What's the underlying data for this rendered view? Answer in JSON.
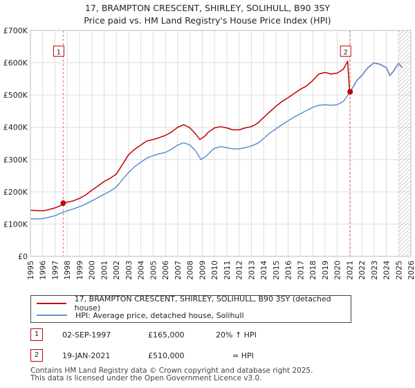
{
  "chart_data": {
    "type": "line",
    "title": "17, BRAMPTON CRESCENT, SHIRLEY, SOLIHULL, B90 3SY",
    "subtitle": "Price paid vs. HM Land Registry's House Price Index (HPI)",
    "xlabel": "",
    "ylabel": "",
    "xlim": [
      1995,
      2026
    ],
    "ylim": [
      0,
      700000
    ],
    "x_ticks": [
      "1995",
      "1996",
      "1997",
      "1998",
      "1999",
      "2000",
      "2001",
      "2002",
      "2003",
      "2004",
      "2005",
      "2006",
      "2007",
      "2008",
      "2009",
      "2010",
      "2011",
      "2012",
      "2013",
      "2014",
      "2015",
      "2016",
      "2017",
      "2018",
      "2019",
      "2020",
      "2021",
      "2022",
      "2023",
      "2024",
      "2025",
      "2026"
    ],
    "y_ticks": [
      {
        "value": 0,
        "label": "£0"
      },
      {
        "value": 100000,
        "label": "£100K"
      },
      {
        "value": 200000,
        "label": "£200K"
      },
      {
        "value": 300000,
        "label": "£300K"
      },
      {
        "value": 400000,
        "label": "£400K"
      },
      {
        "value": 500000,
        "label": "£500K"
      },
      {
        "value": 600000,
        "label": "£600K"
      },
      {
        "value": 700000,
        "label": "£700K"
      }
    ],
    "grid": true,
    "series": [
      {
        "name": "17, BRAMPTON CRESCENT, SHIRLEY, SOLIHULL, B90 3SY (detached house)",
        "color": "#c00000",
        "points": [
          [
            1995.0,
            143000
          ],
          [
            1995.5,
            142000
          ],
          [
            1996.0,
            141000
          ],
          [
            1996.5,
            145000
          ],
          [
            1997.0,
            150000
          ],
          [
            1997.5,
            158000
          ],
          [
            1997.67,
            165000
          ],
          [
            1998.0,
            168000
          ],
          [
            1998.5,
            172000
          ],
          [
            1999.0,
            180000
          ],
          [
            1999.5,
            190000
          ],
          [
            2000.0,
            205000
          ],
          [
            2000.5,
            218000
          ],
          [
            2001.0,
            232000
          ],
          [
            2001.5,
            242000
          ],
          [
            2002.0,
            255000
          ],
          [
            2002.5,
            285000
          ],
          [
            2003.0,
            315000
          ],
          [
            2003.5,
            332000
          ],
          [
            2004.0,
            345000
          ],
          [
            2004.5,
            358000
          ],
          [
            2005.0,
            362000
          ],
          [
            2005.5,
            368000
          ],
          [
            2006.0,
            375000
          ],
          [
            2006.5,
            385000
          ],
          [
            2007.0,
            400000
          ],
          [
            2007.5,
            408000
          ],
          [
            2008.0,
            398000
          ],
          [
            2008.5,
            378000
          ],
          [
            2008.8,
            362000
          ],
          [
            2009.2,
            372000
          ],
          [
            2009.5,
            385000
          ],
          [
            2010.0,
            398000
          ],
          [
            2010.5,
            402000
          ],
          [
            2011.0,
            398000
          ],
          [
            2011.5,
            392000
          ],
          [
            2012.0,
            392000
          ],
          [
            2012.5,
            398000
          ],
          [
            2013.0,
            402000
          ],
          [
            2013.5,
            412000
          ],
          [
            2014.0,
            430000
          ],
          [
            2014.5,
            448000
          ],
          [
            2015.0,
            465000
          ],
          [
            2015.5,
            480000
          ],
          [
            2016.0,
            492000
          ],
          [
            2016.5,
            505000
          ],
          [
            2017.0,
            518000
          ],
          [
            2017.5,
            528000
          ],
          [
            2018.0,
            545000
          ],
          [
            2018.5,
            565000
          ],
          [
            2019.0,
            570000
          ],
          [
            2019.5,
            565000
          ],
          [
            2020.0,
            568000
          ],
          [
            2020.5,
            580000
          ],
          [
            2020.85,
            605000
          ],
          [
            2021.0,
            515000
          ],
          [
            2021.05,
            510000
          ],
          [
            2021.3,
            525000
          ],
          [
            2021.6,
            545000
          ],
          [
            2022.0,
            560000
          ],
          [
            2022.5,
            585000
          ],
          [
            2023.0,
            600000
          ],
          [
            2023.5,
            595000
          ],
          [
            2024.0,
            585000
          ],
          [
            2024.3,
            560000
          ],
          [
            2024.6,
            575000
          ],
          [
            2025.0,
            598000
          ],
          [
            2025.3,
            585000
          ]
        ]
      },
      {
        "name": "HPI: Average price, detached house, Solihull",
        "color": "#5b8fd1",
        "points": [
          [
            1995.0,
            117000
          ],
          [
            1995.5,
            116000
          ],
          [
            1996.0,
            117000
          ],
          [
            1996.5,
            121000
          ],
          [
            1997.0,
            126000
          ],
          [
            1997.67,
            137000
          ],
          [
            1998.0,
            141000
          ],
          [
            1998.5,
            147000
          ],
          [
            1999.0,
            154000
          ],
          [
            1999.5,
            162000
          ],
          [
            2000.0,
            172000
          ],
          [
            2000.5,
            182000
          ],
          [
            2001.0,
            192000
          ],
          [
            2001.5,
            202000
          ],
          [
            2002.0,
            215000
          ],
          [
            2002.5,
            238000
          ],
          [
            2003.0,
            260000
          ],
          [
            2003.5,
            278000
          ],
          [
            2004.0,
            292000
          ],
          [
            2004.5,
            305000
          ],
          [
            2005.0,
            312000
          ],
          [
            2005.5,
            318000
          ],
          [
            2006.0,
            322000
          ],
          [
            2006.5,
            332000
          ],
          [
            2007.0,
            345000
          ],
          [
            2007.5,
            352000
          ],
          [
            2008.0,
            345000
          ],
          [
            2008.5,
            325000
          ],
          [
            2008.9,
            300000
          ],
          [
            2009.3,
            310000
          ],
          [
            2009.7,
            325000
          ],
          [
            2010.0,
            335000
          ],
          [
            2010.5,
            340000
          ],
          [
            2011.0,
            337000
          ],
          [
            2011.5,
            333000
          ],
          [
            2012.0,
            333000
          ],
          [
            2012.5,
            337000
          ],
          [
            2013.0,
            342000
          ],
          [
            2013.5,
            350000
          ],
          [
            2014.0,
            365000
          ],
          [
            2014.5,
            382000
          ],
          [
            2015.0,
            395000
          ],
          [
            2015.5,
            408000
          ],
          [
            2016.0,
            420000
          ],
          [
            2016.5,
            432000
          ],
          [
            2017.0,
            442000
          ],
          [
            2017.5,
            452000
          ],
          [
            2018.0,
            462000
          ],
          [
            2018.5,
            468000
          ],
          [
            2019.0,
            470000
          ],
          [
            2019.5,
            468000
          ],
          [
            2020.0,
            470000
          ],
          [
            2020.5,
            480000
          ],
          [
            2021.05,
            510000
          ],
          [
            2021.3,
            525000
          ],
          [
            2021.6,
            545000
          ],
          [
            2022.0,
            560000
          ],
          [
            2022.5,
            585000
          ],
          [
            2023.0,
            600000
          ],
          [
            2023.5,
            595000
          ],
          [
            2024.0,
            585000
          ],
          [
            2024.3,
            560000
          ],
          [
            2024.6,
            575000
          ],
          [
            2025.0,
            598000
          ],
          [
            2025.3,
            585000
          ]
        ]
      }
    ],
    "annotations": [
      {
        "label": "1",
        "x": 1997.67,
        "value": 165000,
        "label_y_value": 635000
      },
      {
        "label": "2",
        "x": 2021.05,
        "value": 510000,
        "label_y_value": 635000
      }
    ],
    "hatch_from": 2025.0
  },
  "legend": {
    "property_label": "17, BRAMPTON CRESCENT, SHIRLEY, SOLIHULL, B90 3SY (detached house)",
    "hpi_label": "HPI: Average price, detached house, Solihull"
  },
  "transactions": [
    {
      "num": "1",
      "date": "02-SEP-1997",
      "price": "£165,000",
      "hpi": "20% ↑ HPI"
    },
    {
      "num": "2",
      "date": "19-JAN-2021",
      "price": "£510,000",
      "hpi": "≈ HPI"
    }
  ],
  "footer": {
    "line1": "Contains HM Land Registry data © Crown copyright and database right 2025.",
    "line2": "This data is licensed under the Open Government Licence v3.0."
  },
  "colors": {
    "property": "#c00000",
    "hpi": "#5b8fd1",
    "grid": "#dddddd",
    "vline": "#e06666"
  }
}
